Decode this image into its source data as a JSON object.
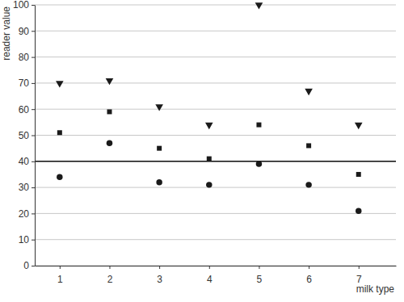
{
  "chart_data": {
    "type": "scatter",
    "x_label": "milk type",
    "y_label": "reader value",
    "x": [
      1,
      2,
      3,
      4,
      5,
      6,
      7
    ],
    "series": [
      {
        "color": "#1a1a1a",
        "marker": "triangle-down",
        "values": [
          70,
          71,
          61,
          54,
          100,
          67,
          54
        ]
      },
      {
        "color": "#1a1a1a",
        "marker": "square",
        "values": [
          51,
          59,
          45,
          41,
          54,
          46,
          35
        ]
      },
      {
        "color": "#1a1a1a",
        "marker": "circle",
        "values": [
          34,
          47,
          32,
          31,
          39,
          31,
          21
        ]
      }
    ],
    "xlim": [
      0.5,
      7.75
    ],
    "xticks": [
      1,
      2,
      3,
      4,
      5,
      6,
      7
    ],
    "ylim": [
      0,
      100
    ],
    "yticks": [
      0,
      10,
      20,
      30,
      40,
      50,
      60,
      70,
      80,
      90,
      100
    ],
    "grid": true,
    "reference_line": 40
  }
}
